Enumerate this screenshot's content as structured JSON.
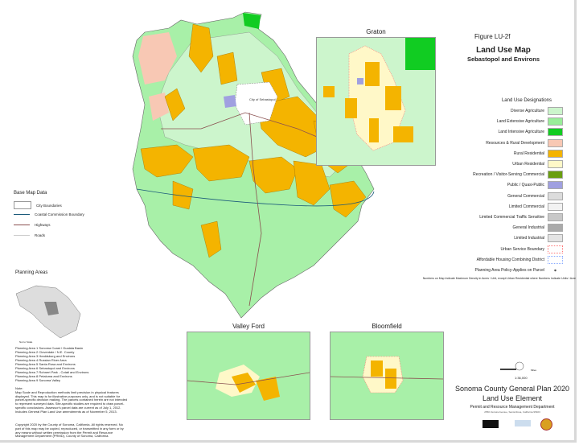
{
  "figure": "Figure LU-2f",
  "title": "Land Use Map",
  "subtitle": "Sebastopol and Environs",
  "legend": {
    "title": "Land Use Designations",
    "items": [
      {
        "label": "Diverse Agriculture",
        "color": "#ccf5cc"
      },
      {
        "label": "Land Extensive Agriculture",
        "color": "#99ee99"
      },
      {
        "label": "Land Intensive Agriculture",
        "color": "#11cc22"
      },
      {
        "label": "Resources & Rural Development",
        "color": "#f8c8b4"
      },
      {
        "label": "Rural Residential",
        "color": "#f4b400"
      },
      {
        "label": "Urban Residential",
        "color": "#fff8c8"
      },
      {
        "label": "Recreation / Visitor-Serving Commercial",
        "color": "#6a9e10"
      },
      {
        "label": "Public / Quasi-Public",
        "color": "#a0a0e0"
      },
      {
        "label": "General Commercial",
        "color": "#dcdcdc"
      },
      {
        "label": "Limited Commercial",
        "color": "#f2f2f2"
      },
      {
        "label": "Limited Commercial Traffic Sensitive",
        "color": "#c8c8c8"
      },
      {
        "label": "General Industrial",
        "color": "#aaaaaa"
      },
      {
        "label": "Limited Industrial",
        "color": "#e4e4e4"
      },
      {
        "label": "Urban Service Boundary",
        "color": "#ff7777",
        "style": "dotted"
      },
      {
        "label": "Affordable Housing Combining District",
        "color": "#88aaff",
        "style": "dotted"
      },
      {
        "label": "Planning Area Policy-Applies on Parcel",
        "color": "#555555",
        "style": "dot"
      }
    ],
    "density_note": "Numbers on Map Indicate Maximum Density in Acres / Unit, except Urban Residential where Numbers Indicate Units / Acre"
  },
  "base_map": {
    "title": "Base Map Data",
    "items": [
      "City Boundaries",
      "Coastal Commission Boundary",
      "Highways",
      "Roads"
    ]
  },
  "main_map": {
    "city_label": "City of Sebastopol"
  },
  "planning_areas": {
    "title": "Planning Areas",
    "north_label": "Not to Scale",
    "list": [
      "Planning Area 1 Sonoma Coast / Gualala Basin",
      "Planning Area 2 Cloverdale / N.E. County",
      "Planning Area 3 Healdsburg and Environs",
      "Planning Area 4 Russian River Area",
      "Planning Area 5 Santa Rosa and Environs",
      "Planning Area 6 Sebastopol and Environs",
      "Planning Area 7 Rohnert Park - Cotati and Environs",
      "Planning Area 8 Petaluma and Environs",
      "Planning Area 9 Sonoma Valley"
    ]
  },
  "note": {
    "heading": "Note:",
    "text": "Map Scale and Reproduction methods limit precision in physical features displayed. This map is for illustrative purposes only, and is not suitable for parcel-specific decision making. The parcels contained herein are not intended to represent surveyed data. Site-specific studies are required to draw parcel-specific conclusions. Assessor's parcel data are current as of July 1, 2012. Includes General Plan Land Use amendments as of November 5, 2013."
  },
  "copyright": "Copyright 2020 by the County of Sonoma, California. All rights reserved. No part of this map may be copied, reproduced, or transmitted in any form or by any means without written permission from the Permit and Resource Management Department (PRMD), County of Sonoma, California.",
  "insets": {
    "graton": "Graton",
    "valley_ford": "Valley Ford",
    "bloomfield": "Bloomfield"
  },
  "scale": {
    "ratio": "1:36,000",
    "unit": "Miles"
  },
  "title_block": {
    "line1": "Sonoma County General Plan 2020",
    "line2": "Land Use Element",
    "dept": "Permit and Resource Management Department",
    "address": "2550 Ventura Avenue, Santa Rosa, California 95403"
  }
}
